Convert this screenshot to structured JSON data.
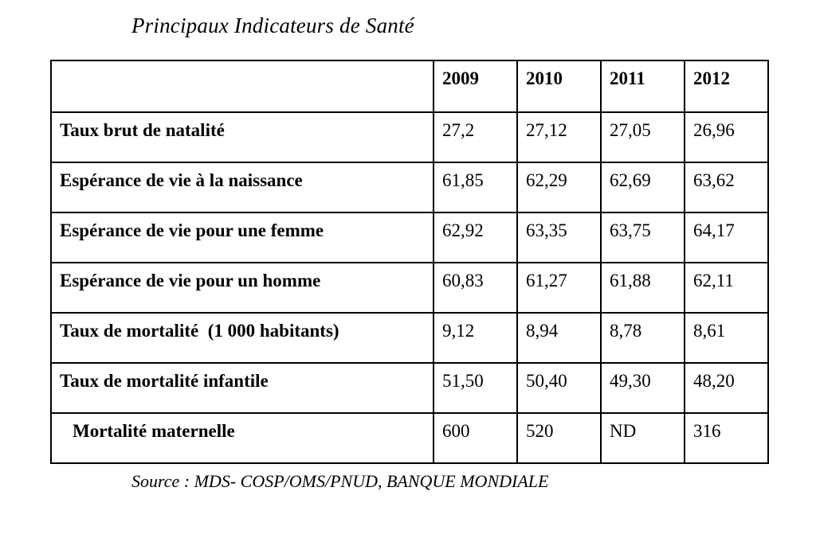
{
  "page": {
    "title": "Principaux Indicateurs de Santé",
    "source": "Source : MDS- COSP/OMS/PNUD, BANQUE MONDIALE"
  },
  "table": {
    "years": [
      "2009",
      "2010",
      "2011",
      "2012"
    ],
    "rows": [
      {
        "label": "Taux brut de natalité",
        "values": [
          "27,2",
          "27,12",
          "27,05",
          "26,96"
        ]
      },
      {
        "label": "Espérance de vie à la naissance",
        "values": [
          "61,85",
          "62,29",
          "62,69",
          "63,62"
        ]
      },
      {
        "label": "Espérance de vie pour une femme",
        "values": [
          "62,92",
          "63,35",
          "63,75",
          "64,17"
        ]
      },
      {
        "label": "Espérance de vie pour un homme",
        "values": [
          "60,83",
          "61,27",
          "61,88",
          "62,11"
        ]
      },
      {
        "label": "Taux de mortalité  (1 000 habitants)",
        "values": [
          "9,12",
          "8,94",
          "8,78",
          "8,61"
        ]
      },
      {
        "label": "Taux de mortalité infantile",
        "values": [
          "51,50",
          "50,40",
          "49,30",
          "48,20"
        ]
      },
      {
        "label": "Mortalité maternelle",
        "values": [
          "600",
          "520",
          "ND",
          "316"
        ]
      }
    ]
  }
}
